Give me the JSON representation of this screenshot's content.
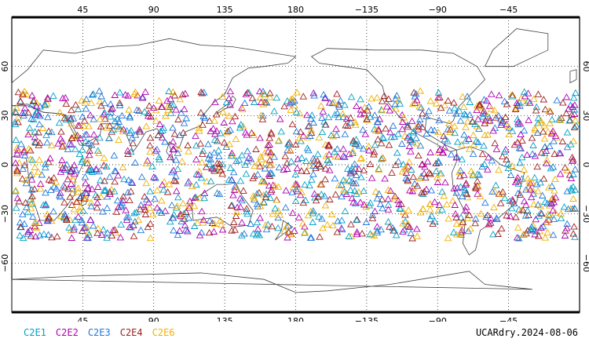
{
  "legend": [
    {
      "label": "C2E1",
      "color": "#00a0c8"
    },
    {
      "label": "C2E2",
      "color": "#b000b0"
    },
    {
      "label": "C2E3",
      "color": "#1e78dc"
    },
    {
      "label": "C2E4",
      "color": "#a02020"
    },
    {
      "label": "C2E6",
      "color": "#f0b000"
    }
  ],
  "source_label": "UCARdry.2024-08-06",
  "lon_ticks": [
    "45",
    "90",
    "135",
    "180",
    "−135",
    "−90",
    "−45"
  ],
  "lat_ticks": [
    "60",
    "30",
    "0",
    "−30",
    "−60"
  ],
  "chart_data": {
    "type": "scatter",
    "projection": "cylindrical equidistant, centered on 180",
    "x_label": "longitude",
    "y_label": "latitude",
    "lat_band": [
      -45,
      45
    ],
    "marker": "open triangle",
    "series": [
      {
        "name": "C2E1",
        "color": "#00a0c8"
      },
      {
        "name": "C2E2",
        "color": "#b000b0"
      },
      {
        "name": "C2E3",
        "color": "#1e78dc"
      },
      {
        "name": "C2E4",
        "color": "#a02020"
      },
      {
        "name": "C2E6",
        "color": "#f0b000"
      }
    ]
  }
}
